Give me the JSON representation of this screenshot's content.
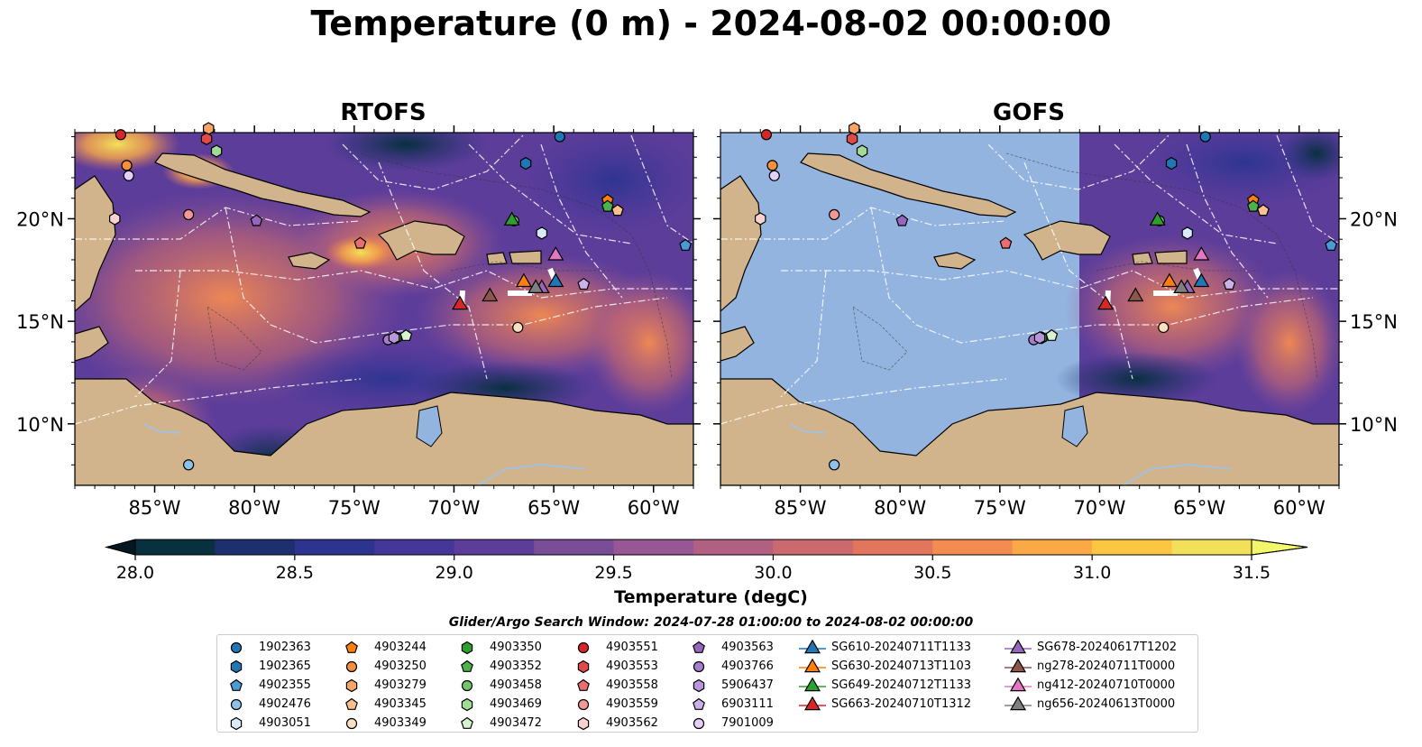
{
  "title": "Temperature (0 m) - 2024-08-02 00:00:00",
  "panels": [
    {
      "title": "RTOFS"
    },
    {
      "title": "GOFS"
    }
  ],
  "axes": {
    "x_ticks": [
      "85°W",
      "80°W",
      "75°W",
      "70°W",
      "65°W",
      "60°W"
    ],
    "y_ticks": [
      "20°N",
      "15°N",
      "10°N"
    ],
    "lon_range": [
      -89,
      -58
    ],
    "lat_range": [
      7,
      24.2
    ]
  },
  "colorbar": {
    "label": "Temperature (degC)",
    "ticks": [
      "28.0",
      "28.5",
      "29.0",
      "29.5",
      "30.0",
      "30.5",
      "31.0",
      "31.5"
    ],
    "range": [
      28.0,
      31.5
    ],
    "colors": [
      "#08303e",
      "#1d2f6e",
      "#2c3490",
      "#443799",
      "#5c3d9a",
      "#7a4d97",
      "#975694",
      "#b26082",
      "#cb6a6e",
      "#e2765d",
      "#f48b50",
      "#fba847",
      "#fcc642",
      "#f3e05a"
    ]
  },
  "search_window": "Glider/Argo Search Window: 2024-07-28 01:00:00 to 2024-08-02 00:00:00",
  "legend": {
    "columns": [
      [
        {
          "label": "1902363",
          "marker": "circle",
          "color": "#1f77b4"
        },
        {
          "label": "1902365",
          "marker": "hexagon",
          "color": "#1f77b4"
        },
        {
          "label": "4902355",
          "marker": "pentagon",
          "color": "#4a9ad6"
        },
        {
          "label": "4902476",
          "marker": "circle",
          "color": "#8ec1ea"
        },
        {
          "label": "4903051",
          "marker": "hexagon",
          "color": "#d9ebf8"
        }
      ],
      [
        {
          "label": "4903244",
          "marker": "pentagon",
          "color": "#ff7f0e"
        },
        {
          "label": "4903250",
          "marker": "circle",
          "color": "#f58f3c"
        },
        {
          "label": "4903279",
          "marker": "hexagon",
          "color": "#f9a565"
        },
        {
          "label": "4903345",
          "marker": "pentagon",
          "color": "#fcc08e"
        },
        {
          "label": "4903349",
          "marker": "circle",
          "color": "#fde0c2"
        }
      ],
      [
        {
          "label": "4903350",
          "marker": "hexagon",
          "color": "#2ca02c"
        },
        {
          "label": "4903352",
          "marker": "pentagon",
          "color": "#4cb24c"
        },
        {
          "label": "4903458",
          "marker": "circle",
          "color": "#71c66c"
        },
        {
          "label": "4903469",
          "marker": "hexagon",
          "color": "#a0dc96"
        },
        {
          "label": "4903472",
          "marker": "pentagon",
          "color": "#d8f2d0"
        }
      ],
      [
        {
          "label": "4903551",
          "marker": "circle",
          "color": "#d62728"
        },
        {
          "label": "4903553",
          "marker": "hexagon",
          "color": "#e0494a"
        },
        {
          "label": "4903558",
          "marker": "pentagon",
          "color": "#ea6e6f"
        },
        {
          "label": "4903559",
          "marker": "circle",
          "color": "#f29896"
        },
        {
          "label": "4903562",
          "marker": "hexagon",
          "color": "#fad3d0"
        }
      ],
      [
        {
          "label": "4903563",
          "marker": "pentagon",
          "color": "#9467bd"
        },
        {
          "label": "4903766",
          "marker": "circle",
          "color": "#a57fcc"
        },
        {
          "label": "5906437",
          "marker": "hexagon",
          "color": "#b796dc"
        },
        {
          "label": "6903111",
          "marker": "pentagon",
          "color": "#cbb1ea"
        },
        {
          "label": "7901009",
          "marker": "circle",
          "color": "#e2d0f6"
        }
      ],
      [
        {
          "label": "SG610-20240711T1133",
          "marker": "triangle",
          "color": "#1f77b4"
        },
        {
          "label": "SG630-20240713T1103",
          "marker": "triangle",
          "color": "#ff7f0e"
        },
        {
          "label": "SG649-20240712T1133",
          "marker": "triangle",
          "color": "#2ca02c"
        },
        {
          "label": "SG663-20240710T1312",
          "marker": "triangle",
          "color": "#d62728"
        }
      ],
      [
        {
          "label": "SG678-20240617T1202",
          "marker": "triangle",
          "color": "#9467bd"
        },
        {
          "label": "ng278-20240711T0000",
          "marker": "triangle",
          "color": "#8c564b"
        },
        {
          "label": "ng412-20240710T0000",
          "marker": "triangle",
          "color": "#e377c2"
        },
        {
          "label": "ng656-20240613T0000",
          "marker": "triangle",
          "color": "#7f7f7f"
        }
      ]
    ]
  },
  "map_colors": {
    "land": "#d2b48c",
    "masked_ocean": "#94b4e0",
    "lake": "#94b4e0"
  }
}
